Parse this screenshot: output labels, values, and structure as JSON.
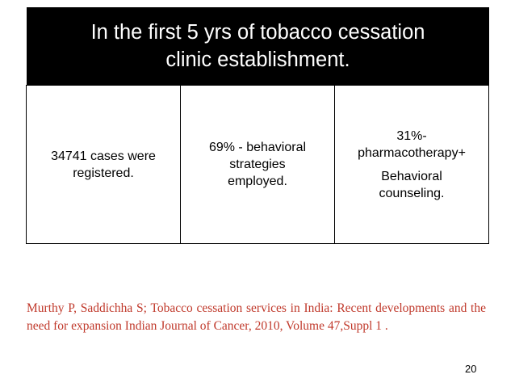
{
  "header": {
    "line1": "In the first 5 yrs of tobacco cessation",
    "line2": "clinic establishment."
  },
  "boxes": [
    {
      "lines": [
        "34741 cases were",
        "registered."
      ]
    },
    {
      "lines": [
        "69% - behavioral",
        "strategies",
        "employed."
      ]
    },
    {
      "para1": [
        "31%-",
        "pharmacotherapy+"
      ],
      "para2": [
        "Behavioral",
        "counseling."
      ]
    }
  ],
  "citation": {
    "text": "Murthy P, Saddichha S; Tobacco cessation services in India: Recent developments and the need for expansion Indian Journal of Cancer, 2010, Volume 47,Suppl 1 .",
    "color": "#c0392b"
  },
  "page_number": "20"
}
